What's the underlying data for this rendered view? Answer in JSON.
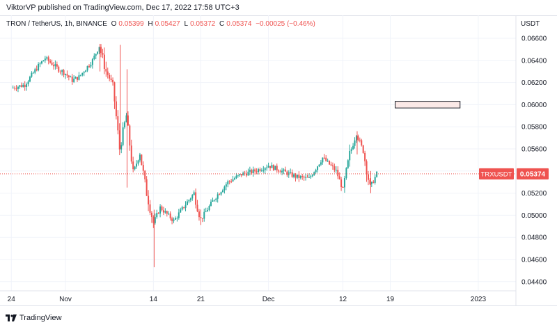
{
  "header": {
    "publisher_text": "ViktorVP published on TradingView.com, Dec 17, 2022 17:58 UTC+3"
  },
  "legend": {
    "symbol": "TRON / TetherUS, 1h, BINANCE",
    "open_key": "O",
    "open": "0.05399",
    "high_key": "H",
    "high": "0.05427",
    "low_key": "L",
    "low": "0.05372",
    "close_key": "C",
    "close": "0.05374",
    "change": "−0.00025 (−0.46%)"
  },
  "price_axis": {
    "currency": "USDT",
    "tick_labels": [
      "0.06600",
      "0.06400",
      "0.06200",
      "0.06000",
      "0.05800",
      "0.05600",
      "0.05400",
      "0.05200",
      "0.05000",
      "0.04800",
      "0.04600",
      "0.04400"
    ]
  },
  "time_axis": {
    "tick_labels": [
      "24",
      "Nov",
      "14",
      "21",
      "Dec",
      "12",
      "19",
      "2023"
    ]
  },
  "last_price_tag": {
    "symbol": "TRXUSDT",
    "price": "0.05374",
    "color": "#ef5350"
  },
  "footer": {
    "brand": "TradingView"
  },
  "colors": {
    "up": "#26a69a",
    "down": "#ef5350",
    "grid": "#f0f3fa",
    "zone_fill": "#fbe9e7"
  },
  "chart_data": {
    "type": "candlestick",
    "title": "TRON / TetherUS, 1h, BINANCE",
    "ylabel": "USDT",
    "ylim": [
      0.043,
      0.0675
    ],
    "y_ticks": [
      0.066,
      0.064,
      0.062,
      0.06,
      0.058,
      0.056,
      0.054,
      0.052,
      0.05,
      0.048,
      0.046,
      0.044
    ],
    "x_ticks": [
      "24",
      "Nov",
      "14",
      "21",
      "Dec",
      "12",
      "19",
      "2023"
    ],
    "grid": true,
    "last_close": 0.05374,
    "resistance_zone": {
      "price_low": 0.0597,
      "price_high": 0.0603,
      "start": "Dec 19",
      "end": "Dec 29"
    },
    "path": [
      {
        "date": "Oct 24",
        "price": 0.0615
      },
      {
        "date": "Oct 26",
        "price": 0.0618
      },
      {
        "date": "Oct 28",
        "price": 0.0635
      },
      {
        "date": "Oct 29",
        "price": 0.0642
      },
      {
        "date": "Oct 31",
        "price": 0.0632
      },
      {
        "date": "Nov 1",
        "price": 0.0628
      },
      {
        "date": "Nov 2",
        "price": 0.0622
      },
      {
        "date": "Nov 3",
        "price": 0.0625
      },
      {
        "date": "Nov 5",
        "price": 0.064
      },
      {
        "date": "Nov 6",
        "price": 0.0653
      },
      {
        "date": "Nov 7",
        "price": 0.063
      },
      {
        "date": "Nov 8",
        "price": 0.0618
      },
      {
        "date": "Nov 9",
        "price": 0.056
      },
      {
        "date": "Nov 10",
        "price": 0.059
      },
      {
        "date": "Nov 11",
        "price": 0.0538
      },
      {
        "date": "Nov 12",
        "price": 0.0556
      },
      {
        "date": "Nov 13",
        "price": 0.052
      },
      {
        "date": "Nov 14",
        "price": 0.0493
      },
      {
        "date": "Nov 15",
        "price": 0.0507
      },
      {
        "date": "Nov 17",
        "price": 0.0495
      },
      {
        "date": "Nov 19",
        "price": 0.0512
      },
      {
        "date": "Nov 20",
        "price": 0.052
      },
      {
        "date": "Nov 21",
        "price": 0.0496
      },
      {
        "date": "Nov 23",
        "price": 0.0515
      },
      {
        "date": "Nov 25",
        "price": 0.053
      },
      {
        "date": "Nov 27",
        "price": 0.0537
      },
      {
        "date": "Nov 29",
        "price": 0.054
      },
      {
        "date": "Dec 1",
        "price": 0.0545
      },
      {
        "date": "Dec 3",
        "price": 0.054
      },
      {
        "date": "Dec 5",
        "price": 0.0535
      },
      {
        "date": "Dec 7",
        "price": 0.0533
      },
      {
        "date": "Dec 9",
        "price": 0.0552
      },
      {
        "date": "Dec 11",
        "price": 0.054
      },
      {
        "date": "Dec 12",
        "price": 0.0523
      },
      {
        "date": "Dec 13",
        "price": 0.0555
      },
      {
        "date": "Dec 14",
        "price": 0.0574
      },
      {
        "date": "Dec 15",
        "price": 0.0558
      },
      {
        "date": "Dec 16",
        "price": 0.0525
      },
      {
        "date": "Dec 17",
        "price": 0.05374
      }
    ]
  }
}
